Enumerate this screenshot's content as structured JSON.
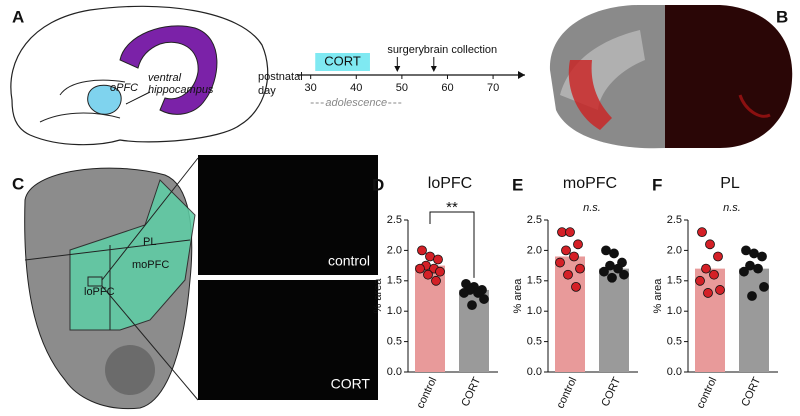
{
  "panel_labels": [
    "A",
    "B",
    "C",
    "D",
    "E",
    "F"
  ],
  "schematic": {
    "opfc": "oPFC",
    "hippocampus": [
      "ventral",
      "hippocampus"
    ]
  },
  "timeline": {
    "axis_label": [
      "postnatal",
      "day"
    ],
    "xlim": [
      27,
      77
    ],
    "ticks": [
      30,
      40,
      50,
      60,
      70
    ],
    "cort": {
      "label": "CORT",
      "days": [
        31,
        43
      ]
    },
    "surgery": {
      "label": "surgery",
      "day": 49
    },
    "collection": {
      "label": "brain collection",
      "day": 57
    },
    "adolescence": {
      "label": "adolescence",
      "days": [
        30,
        50
      ]
    }
  },
  "regions": [
    "PL",
    "moPFC",
    "loPFC"
  ],
  "images": [
    "control",
    "CORT"
  ],
  "chart_data": [
    {
      "type": "bar",
      "title": "loPFC",
      "y_label": "% area",
      "annotation": "**",
      "categories": [
        "control",
        "CORT"
      ],
      "values": [
        1.75,
        1.35
      ],
      "colors": [
        "#e89a9a",
        "#9a9a9a"
      ],
      "point_colors": [
        "#d42027",
        "#111111"
      ],
      "points": [
        [
          2.0,
          1.9,
          1.85,
          1.75,
          1.7,
          1.7,
          1.65,
          1.6,
          1.5
        ],
        [
          1.45,
          1.4,
          1.35,
          1.35,
          1.3,
          1.3,
          1.2,
          1.1
        ]
      ],
      "ylim": [
        0,
        2.5
      ],
      "yticks": [
        {
          "value": 0,
          "label": "0.0"
        },
        {
          "value": 0.5,
          "label": "0.5"
        },
        {
          "value": 1,
          "label": "1.0"
        },
        {
          "value": 1.5,
          "label": "1.5"
        },
        {
          "value": 2,
          "label": "2.0"
        },
        {
          "value": 2.5,
          "label": "2.5"
        }
      ]
    },
    {
      "type": "bar",
      "title": "moPFC",
      "y_label": "% area",
      "annotation": "n.s.",
      "categories": [
        "control",
        "CORT"
      ],
      "values": [
        1.9,
        1.7
      ],
      "colors": [
        "#e89a9a",
        "#9a9a9a"
      ],
      "point_colors": [
        "#d42027",
        "#111111"
      ],
      "points": [
        [
          2.3,
          2.3,
          2.1,
          2.0,
          1.9,
          1.8,
          1.7,
          1.6,
          1.4
        ],
        [
          2.0,
          1.95,
          1.8,
          1.75,
          1.7,
          1.65,
          1.6,
          1.55
        ]
      ],
      "ylim": [
        0,
        2.5
      ],
      "yticks": [
        {
          "value": 0,
          "label": "0.0"
        },
        {
          "value": 0.5,
          "label": "0.5"
        },
        {
          "value": 1,
          "label": "1.0"
        },
        {
          "value": 1.5,
          "label": "1.5"
        },
        {
          "value": 2,
          "label": "2.0"
        },
        {
          "value": 2.5,
          "label": "2.5"
        }
      ]
    },
    {
      "type": "bar",
      "title": "PL",
      "y_label": "% area",
      "annotation": "n.s.",
      "categories": [
        "control",
        "CORT"
      ],
      "values": [
        1.7,
        1.7
      ],
      "colors": [
        "#e89a9a",
        "#9a9a9a"
      ],
      "point_colors": [
        "#d42027",
        "#111111"
      ],
      "points": [
        [
          2.3,
          2.1,
          1.9,
          1.7,
          1.6,
          1.5,
          1.35,
          1.3
        ],
        [
          2.0,
          1.95,
          1.9,
          1.75,
          1.7,
          1.65,
          1.4,
          1.25
        ]
      ],
      "ylim": [
        0,
        2.5
      ],
      "yticks": [
        {
          "value": 0,
          "label": "0.0"
        },
        {
          "value": 0.5,
          "label": "0.5"
        },
        {
          "value": 1,
          "label": "1.0"
        },
        {
          "value": 1.5,
          "label": "1.5"
        },
        {
          "value": 2,
          "label": "2.0"
        },
        {
          "value": 2.5,
          "label": "2.5"
        }
      ]
    }
  ]
}
